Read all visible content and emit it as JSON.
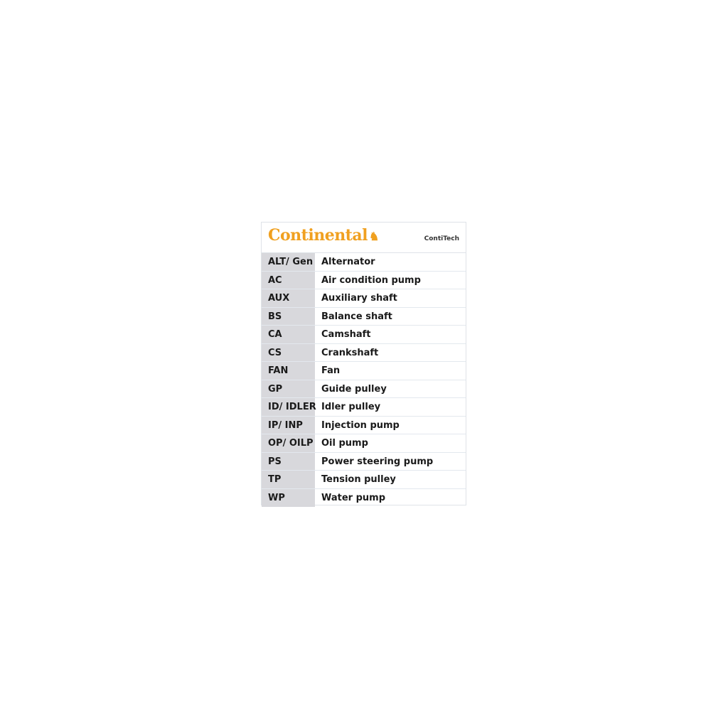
{
  "header": {
    "brand": "Continental",
    "sub_brand": "ContiTech",
    "brand_color": "#f0a020"
  },
  "rows": [
    {
      "abbr": "ALT/ Gen",
      "desc": "Alternator"
    },
    {
      "abbr": "AC",
      "desc": "Air condition pump"
    },
    {
      "abbr": "AUX",
      "desc": "Auxiliary shaft"
    },
    {
      "abbr": "BS",
      "desc": "Balance shaft"
    },
    {
      "abbr": "CA",
      "desc": "Camshaft"
    },
    {
      "abbr": "CS",
      "desc": "Crankshaft"
    },
    {
      "abbr": "FAN",
      "desc": "Fan"
    },
    {
      "abbr": "GP",
      "desc": "Guide pulley"
    },
    {
      "abbr": "ID/ IDLER",
      "desc": "Idler pulley"
    },
    {
      "abbr": "IP/ INP",
      "desc": "Injection pump"
    },
    {
      "abbr": "OP/ OILP",
      "desc": "Oil pump"
    },
    {
      "abbr": "PS",
      "desc": "Power steering pump"
    },
    {
      "abbr": "TP",
      "desc": "Tension pulley"
    },
    {
      "abbr": "WP",
      "desc": "Water pump"
    }
  ]
}
